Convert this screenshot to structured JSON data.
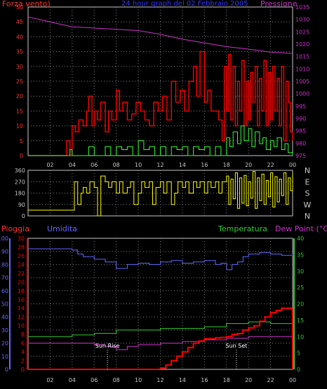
{
  "title": "24 hour graph del 02 Febbraio 2005",
  "colors": {
    "background": "#000000",
    "plot_bg": "#000000",
    "frame": "#c8c8c8",
    "grid": "#808080",
    "wind_gust": "#ff0000",
    "wind_avg": "#33ff33",
    "pressure": "#cc33cc",
    "direction": "#ffff00",
    "rain": "#ff0000",
    "humidity": "#6666ff",
    "temperature": "#33cc33",
    "dew_point": "#cc33cc",
    "sun_marker": "#ffffff"
  },
  "x_ticks": [
    "02",
    "04",
    "06",
    "08",
    "10",
    "12",
    "14",
    "16",
    "18",
    "20",
    "22",
    "00"
  ],
  "chart_data": [
    {
      "type": "line",
      "panel": "wind_pressure",
      "left_axis_label": "Forza vento)",
      "right_axis_label": "Pressione",
      "left_ticks": [
        0,
        5,
        10,
        15,
        20,
        25,
        30,
        35,
        40,
        45,
        50
      ],
      "right_ticks": [
        975,
        980,
        985,
        990,
        995,
        1000,
        1005,
        1010,
        1015,
        1020,
        1025,
        1030,
        1035
      ],
      "ylim_left": [
        0,
        50
      ],
      "ylim_right": [
        975,
        1035
      ],
      "x_range_hours": [
        0,
        24
      ],
      "grid": true,
      "series": [
        {
          "key": "pressure",
          "axis": "right",
          "x": [
            0,
            2,
            4,
            6,
            8,
            10,
            12,
            14,
            16,
            18,
            20,
            22,
            24
          ],
          "values": [
            1031,
            1029,
            1027,
            1026.5,
            1026,
            1025.5,
            1024,
            1022,
            1020.5,
            1019,
            1018,
            1016.8,
            1016.2
          ]
        },
        {
          "key": "wind_gust",
          "axis": "left",
          "x": [
            0,
            2,
            3.2,
            3.5,
            3.8,
            4,
            4.3,
            4.6,
            5,
            5.3,
            5.5,
            5.8,
            6,
            6.3,
            6.6,
            7,
            7.3,
            7.6,
            8,
            8.3,
            8.6,
            9,
            9.4,
            9.8,
            10.2,
            10.6,
            11,
            11.4,
            11.8,
            12.2,
            12.6,
            13,
            13.4,
            13.8,
            14.2,
            14.6,
            15,
            15.3,
            15.6,
            16,
            16.3,
            16.6,
            17,
            17.3,
            17.6,
            17.8,
            18,
            18.2,
            18.4,
            18.6,
            18.8,
            19,
            19.2,
            19.4,
            19.6,
            19.8,
            20,
            20.2,
            20.4,
            20.6,
            20.8,
            21,
            21.2,
            21.4,
            21.6,
            21.8,
            22,
            22.2,
            22.4,
            22.6,
            22.8,
            23,
            23.2,
            23.4,
            23.6,
            23.8,
            24
          ],
          "values": [
            0,
            0,
            0,
            5,
            0,
            10,
            8,
            12,
            10,
            15,
            20,
            10,
            15,
            12,
            18,
            8,
            15,
            12,
            22,
            15,
            18,
            12,
            14,
            18,
            15,
            12,
            10,
            18,
            15,
            20,
            12,
            25,
            18,
            22,
            15,
            25,
            30,
            20,
            35,
            18,
            22,
            15,
            15,
            12,
            5,
            30,
            15,
            34,
            12,
            30,
            10,
            25,
            15,
            32,
            10,
            25,
            12,
            28,
            18,
            30,
            10,
            26,
            15,
            32,
            10,
            28,
            12,
            30,
            15,
            26,
            10,
            30,
            5,
            25,
            18,
            8,
            5
          ]
        },
        {
          "key": "wind_avg",
          "axis": "left",
          "x": [
            0,
            2,
            3.2,
            3.8,
            4,
            5,
            5.5,
            6,
            7,
            7.5,
            8,
            8.5,
            9,
            9.5,
            10,
            10.5,
            11,
            11.5,
            12,
            12.5,
            13,
            13.5,
            14,
            14.5,
            15,
            15.5,
            16,
            16.5,
            17,
            17.5,
            18,
            18.3,
            18.6,
            19,
            19.3,
            19.6,
            20,
            20.3,
            20.6,
            21,
            21.3,
            21.6,
            22,
            22.3,
            22.6,
            23,
            23.3,
            23.6,
            24
          ],
          "values": [
            0,
            0,
            0,
            2,
            0,
            0,
            3,
            0,
            3,
            0,
            3,
            2,
            3,
            0,
            5,
            2,
            3,
            0,
            3,
            0,
            3,
            2,
            3,
            0,
            3,
            2,
            3,
            0,
            3,
            0,
            6,
            3,
            8,
            4,
            10,
            5,
            9,
            3,
            8,
            4,
            6,
            2,
            5,
            3,
            6,
            2,
            4,
            1,
            0
          ]
        }
      ]
    },
    {
      "type": "line",
      "panel": "direction",
      "left_ticks": [
        0,
        90,
        180,
        270,
        360
      ],
      "compass_labels": [
        "N",
        "W",
        "S",
        "E",
        "N"
      ],
      "ylim": [
        0,
        360
      ],
      "x_range_hours": [
        0,
        24
      ],
      "grid": true,
      "series": [
        {
          "key": "direction",
          "x": [
            0,
            4,
            4.2,
            4.5,
            4.8,
            5,
            5.3,
            5.6,
            6,
            6.3,
            6.6,
            7,
            7.3,
            7.6,
            8,
            8.3,
            8.6,
            9,
            9.3,
            9.6,
            10,
            10.3,
            10.6,
            11,
            11.3,
            11.6,
            12,
            12.3,
            12.6,
            13,
            13.3,
            13.6,
            14,
            14.3,
            14.6,
            15,
            15.3,
            15.6,
            16,
            16.3,
            16.6,
            17,
            17.3,
            17.6,
            18,
            18.2,
            18.4,
            18.6,
            18.8,
            19,
            19.2,
            19.4,
            19.6,
            19.8,
            20,
            20.2,
            20.4,
            20.6,
            20.8,
            21,
            21.2,
            21.4,
            21.6,
            21.8,
            22,
            22.2,
            22.4,
            22.6,
            22.8,
            23,
            23.2,
            23.4,
            23.6,
            23.8,
            24
          ],
          "values": [
            45,
            45,
            270,
            90,
            180,
            225,
            180,
            270,
            225,
            0,
            315,
            270,
            225,
            270,
            180,
            270,
            180,
            225,
            270,
            90,
            180,
            270,
            225,
            270,
            90,
            225,
            270,
            180,
            270,
            90,
            180,
            270,
            225,
            270,
            180,
            270,
            225,
            270,
            180,
            270,
            225,
            270,
            180,
            270,
            315,
            90,
            290,
            135,
            340,
            60,
            300,
            100,
            320,
            80,
            270,
            140,
            350,
            60,
            300,
            120,
            330,
            90,
            280,
            150,
            340,
            70,
            310,
            110,
            290,
            160,
            340,
            90,
            300,
            200,
            340
          ]
        }
      ]
    },
    {
      "type": "line",
      "panel": "rain_hum_temp",
      "left_axis_label_1": "Pioggia",
      "left_axis_label_2": "Umidita",
      "right_axis_label_1": "Temperatura",
      "right_axis_label_2": "Dew Point (°C)",
      "humidity_ticks": [
        0,
        10,
        20,
        30,
        40,
        50,
        60,
        70,
        80,
        90,
        100
      ],
      "rain_ticks": [
        0,
        2,
        4,
        6,
        8,
        10,
        12,
        14,
        16,
        18,
        20,
        22,
        24,
        26,
        28,
        30
      ],
      "temp_ticks": [
        0,
        5,
        10,
        15,
        20,
        25,
        30,
        35,
        40
      ],
      "ylim_humidity": [
        0,
        100
      ],
      "ylim_rain": [
        0,
        30
      ],
      "ylim_temp": [
        0,
        40
      ],
      "x_range_hours": [
        0,
        24
      ],
      "grid": true,
      "annotations": [
        {
          "text": "Sun Rise",
          "x": 7.2
        },
        {
          "text": "Sun Set",
          "x": 18.9
        }
      ],
      "series": [
        {
          "key": "humidity",
          "axis": "humidity",
          "x": [
            0,
            2,
            3,
            4,
            4.5,
            5,
            6,
            7,
            8,
            9,
            10,
            11,
            12,
            13,
            14,
            15,
            16,
            17,
            17.5,
            18,
            18.5,
            19,
            19.5,
            20,
            21,
            22,
            23,
            24
          ],
          "values": [
            92,
            92,
            92,
            91,
            88,
            86,
            84,
            82,
            77,
            80,
            81,
            80,
            82,
            83,
            81,
            82,
            83,
            80,
            81,
            76,
            80,
            82,
            86,
            88,
            89,
            88,
            87,
            88
          ]
        },
        {
          "key": "temperature",
          "axis": "temp",
          "x": [
            0,
            2,
            4,
            6,
            8,
            10,
            12,
            14,
            16,
            18,
            20,
            22,
            24
          ],
          "values": [
            10,
            10,
            10.5,
            11,
            12,
            12,
            12.5,
            12.5,
            13,
            14,
            14.5,
            14,
            13.5
          ]
        },
        {
          "key": "dew_point",
          "axis": "temp",
          "x": [
            0,
            2,
            4,
            6,
            7,
            8,
            9,
            10,
            12,
            14,
            16,
            18,
            20,
            22,
            24
          ],
          "values": [
            8,
            8,
            8,
            7.5,
            7,
            6,
            7,
            7.5,
            8,
            8.5,
            9,
            9.5,
            10,
            10,
            9.5
          ]
        },
        {
          "key": "rain",
          "axis": "rain",
          "x": [
            0,
            11.5,
            12,
            12.5,
            13,
            13.5,
            14,
            14.5,
            15,
            15.5,
            16,
            16.5,
            17,
            17.5,
            18,
            18.5,
            19,
            19.5,
            20,
            20.5,
            21,
            21.5,
            22,
            22.5,
            23,
            23.5,
            23.9,
            24
          ],
          "values": [
            0,
            0,
            0.3,
            1,
            2,
            3,
            4,
            5,
            6,
            6.5,
            7,
            7,
            7.2,
            7.3,
            7.5,
            8,
            8.2,
            9,
            9.5,
            10,
            11,
            12,
            13,
            13.5,
            14,
            14,
            13.8,
            0
          ]
        }
      ]
    }
  ]
}
